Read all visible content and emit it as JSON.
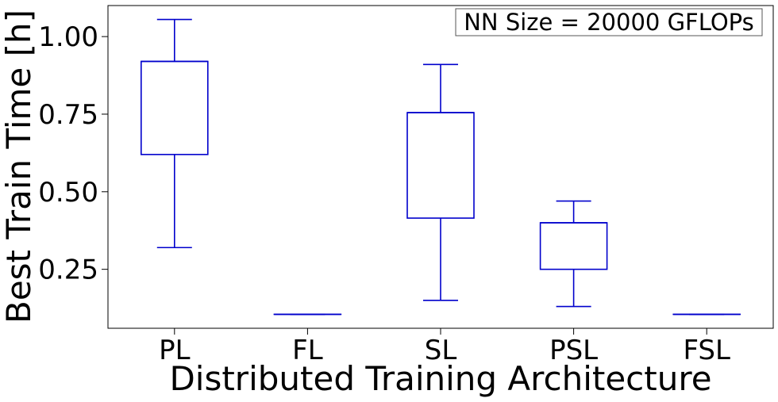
{
  "chart_data": {
    "type": "box",
    "xlabel": "Distributed Training Architecture",
    "ylabel": "Best Train Time [h]",
    "annotation": "NN Size = 20000 GFLOPs",
    "ylim": [
      0.06,
      1.1
    ],
    "yticks": [
      0.25,
      0.5,
      0.75,
      1.0
    ],
    "ytick_labels": [
      "0.25",
      "0.50",
      "0.75",
      "1.00"
    ],
    "grid": false,
    "box_color": "#0000cc",
    "categories": [
      "PL",
      "FL",
      "SL",
      "PSL",
      "FSL"
    ],
    "boxes": [
      {
        "label": "PL",
        "whisker_low": 0.32,
        "q1": 0.62,
        "median": 0.92,
        "q3": 0.92,
        "whisker_high": 1.055
      },
      {
        "label": "FL",
        "whisker_low": 0.105,
        "q1": 0.105,
        "median": 0.105,
        "q3": 0.105,
        "whisker_high": 0.105
      },
      {
        "label": "SL",
        "whisker_low": 0.15,
        "q1": 0.415,
        "median": 0.755,
        "q3": 0.755,
        "whisker_high": 0.91
      },
      {
        "label": "PSL",
        "whisker_low": 0.13,
        "q1": 0.25,
        "median": 0.4,
        "q3": 0.4,
        "whisker_high": 0.47
      },
      {
        "label": "FSL",
        "whisker_low": 0.105,
        "q1": 0.105,
        "median": 0.105,
        "q3": 0.105,
        "whisker_high": 0.105
      }
    ]
  }
}
